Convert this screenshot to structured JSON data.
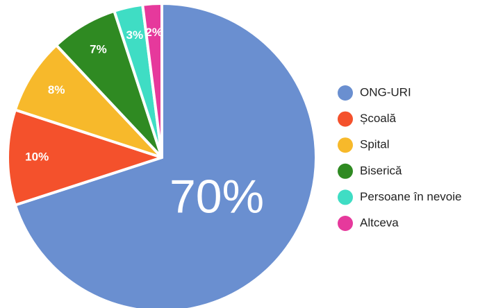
{
  "chart_data": {
    "type": "pie",
    "categories": [
      "ONG-URI",
      "Școală",
      "Spital",
      "Biserică",
      "Persoane în nevoie",
      "Altceva"
    ],
    "values": [
      70,
      10,
      8,
      7,
      3,
      2
    ],
    "value_labels": [
      "70%",
      "10%",
      "8%",
      "7%",
      "3%",
      "2%"
    ],
    "colors": [
      "#6a8fd0",
      "#f4512c",
      "#f7b92b",
      "#2f8a22",
      "#3fddc4",
      "#e6399c"
    ],
    "legend": "right"
  }
}
